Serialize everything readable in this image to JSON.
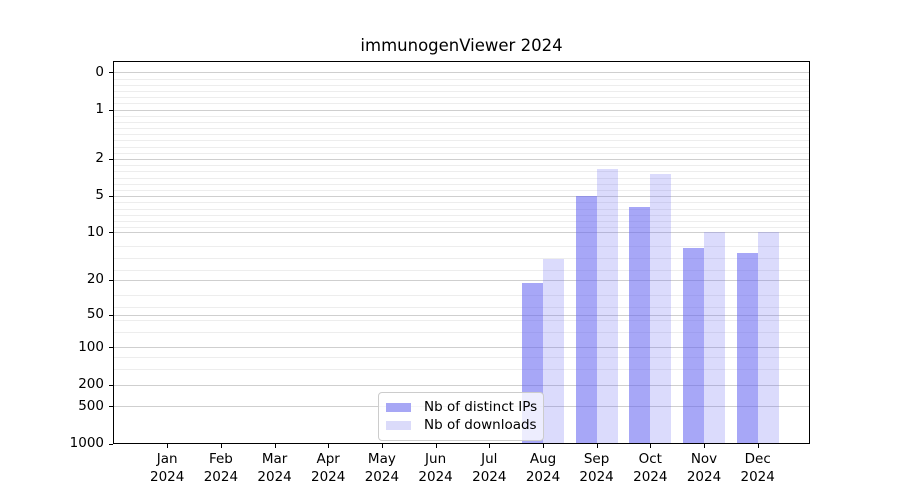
{
  "title": "immunogenViewer 2024",
  "legend": {
    "items": [
      {
        "label": "Nb of distinct IPs",
        "color": "#a7a7f5"
      },
      {
        "label": "Nb of downloads",
        "color": "#dbdbfa"
      }
    ]
  },
  "axes": {
    "x_year_label": "2024",
    "y_tick_labels": [
      "1000",
      "500",
      "200",
      "100",
      "50",
      "20",
      "10",
      "5",
      "2",
      "1",
      "0"
    ]
  },
  "chart_data": {
    "type": "bar",
    "title": "immunogenViewer 2024",
    "categories": [
      "Jan 2024",
      "Feb 2024",
      "Mar 2024",
      "Apr 2024",
      "May 2024",
      "Jun 2024",
      "Jul 2024",
      "Aug 2024",
      "Sep 2024",
      "Oct 2024",
      "Nov 2024",
      "Dec 2024"
    ],
    "month_names": [
      "Jan",
      "Feb",
      "Mar",
      "Apr",
      "May",
      "Jun",
      "Jul",
      "Aug",
      "Sep",
      "Oct",
      "Nov",
      "Dec"
    ],
    "series": [
      {
        "name": "Nb of distinct IPs",
        "color": "#a7a7f5",
        "fill": "rgba(98,98,240,0.56)",
        "values": [
          0,
          0,
          0,
          0,
          0,
          0,
          0,
          19,
          100,
          80,
          37,
          34
        ]
      },
      {
        "name": "Nb of downloads",
        "color": "#dbdbfa",
        "fill": "rgba(98,98,240,0.23)",
        "values": [
          0,
          0,
          0,
          0,
          0,
          0,
          0,
          30,
          165,
          150,
          50,
          50
        ]
      }
    ],
    "yscale": "log(value+1)",
    "yticks": [
      0,
      1,
      2,
      5,
      10,
      20,
      50,
      100,
      200,
      500,
      1000
    ],
    "ylim": [
      0,
      1237
    ],
    "xlabel": "",
    "ylabel": "",
    "grid": true,
    "legend_position": "inside lower-center"
  }
}
